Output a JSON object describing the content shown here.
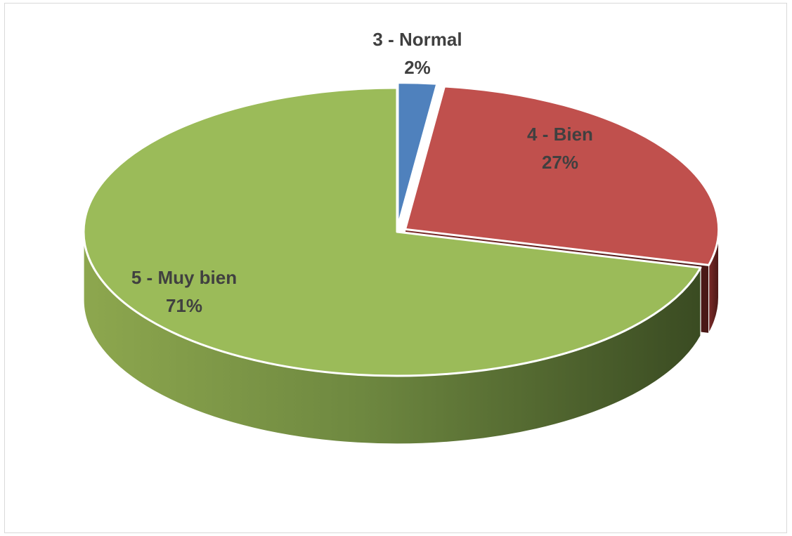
{
  "chart_data": {
    "type": "pie",
    "style": "3d-exploded",
    "title": "",
    "slices": [
      {
        "label": "3 - Normal",
        "percent_label": "2%",
        "value": 2,
        "color": "#4F81BD"
      },
      {
        "label": "4 - Bien",
        "percent_label": "27%",
        "value": 27,
        "color": "#C0504D"
      },
      {
        "label": "5 - Muy bien",
        "percent_label": "71%",
        "value": 71,
        "color": "#9BBB59"
      }
    ],
    "legend": "none",
    "data_labels": "category-and-percent"
  }
}
